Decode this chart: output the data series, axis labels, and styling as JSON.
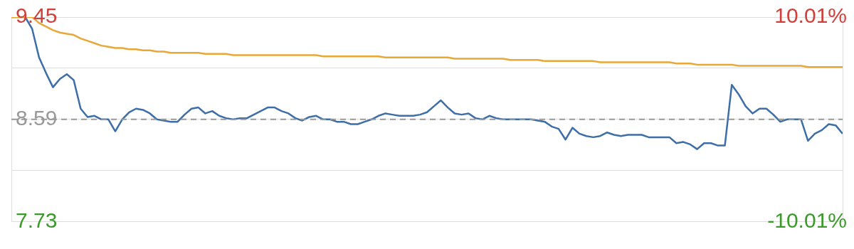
{
  "chart_data": {
    "type": "line",
    "categories": [
      null,
      null,
      null,
      null,
      null,
      null,
      null,
      null,
      null,
      null,
      null,
      null,
      null,
      null,
      null,
      null,
      null,
      null,
      null,
      null,
      null,
      null,
      null,
      null,
      null,
      null,
      null,
      null,
      null,
      null,
      null,
      null,
      null,
      null,
      null,
      null,
      null,
      null,
      null,
      null,
      null,
      null,
      null,
      null,
      null,
      null,
      null,
      null,
      null,
      null,
      null,
      null,
      null,
      null,
      null,
      null,
      null,
      null,
      null,
      null,
      null,
      null,
      null,
      null,
      null,
      null,
      null,
      null,
      null,
      null,
      null,
      null,
      null,
      null,
      null,
      null,
      null,
      null,
      null,
      null,
      null,
      null,
      null,
      null,
      null,
      null,
      null,
      null,
      null,
      null,
      null,
      null,
      null,
      null,
      null,
      null,
      null,
      null,
      null,
      null,
      null,
      null,
      null,
      null,
      null,
      null,
      null,
      null,
      null,
      null,
      null,
      null,
      null,
      null,
      null,
      null,
      null,
      null,
      null,
      null,
      null
    ],
    "ylim": [
      7.73,
      9.45
    ],
    "yticks": [
      7.73,
      {
        "value": 8.16,
        "label": null
      },
      8.59,
      {
        "value": 9.02,
        "label": null
      },
      9.45
    ],
    "y2lim": [
      -10.01,
      10.01
    ],
    "y2ticks": [
      {
        "value": -10.01,
        "label": "-10.01%"
      },
      {
        "value": 10.01,
        "label": "10.01%"
      }
    ],
    "grid": "y",
    "legend": false,
    "marker": "none",
    "ref_lines": [
      {
        "axis": "y",
        "value": 8.59,
        "color": "#999999",
        "line_style": "dashed"
      }
    ],
    "series": [
      {
        "color": "#e8a838",
        "values": [
          9.45,
          9.45,
          9.45,
          9.45,
          9.4,
          9.37,
          9.34,
          9.32,
          9.31,
          9.3,
          9.27,
          9.25,
          9.23,
          9.21,
          9.2,
          9.19,
          9.19,
          9.18,
          9.18,
          9.17,
          9.17,
          9.16,
          9.16,
          9.15,
          9.15,
          9.15,
          9.15,
          9.15,
          9.14,
          9.14,
          9.14,
          9.14,
          9.13,
          9.13,
          9.13,
          9.13,
          9.13,
          9.13,
          9.13,
          9.13,
          9.13,
          9.13,
          9.13,
          9.13,
          9.13,
          9.12,
          9.12,
          9.12,
          9.12,
          9.12,
          9.12,
          9.12,
          9.12,
          9.12,
          9.11,
          9.11,
          9.11,
          9.11,
          9.11,
          9.11,
          9.11,
          9.11,
          9.11,
          9.11,
          9.1,
          9.1,
          9.1,
          9.1,
          9.1,
          9.1,
          9.1,
          9.1,
          9.09,
          9.09,
          9.09,
          9.09,
          9.09,
          9.08,
          9.08,
          9.08,
          9.08,
          9.08,
          9.08,
          9.08,
          9.08,
          9.07,
          9.07,
          9.07,
          9.07,
          9.07,
          9.07,
          9.07,
          9.07,
          9.07,
          9.07,
          9.07,
          9.06,
          9.06,
          9.06,
          9.05,
          9.05,
          9.05,
          9.05,
          9.05,
          9.05,
          9.04,
          9.04,
          9.04,
          9.04,
          9.04,
          9.04,
          9.04,
          9.04,
          9.04,
          9.04,
          9.03,
          9.03,
          9.03,
          9.03,
          9.03,
          9.03
        ]
      },
      {
        "color": "#3d6ea8",
        "values": [
          9.45,
          9.45,
          9.45,
          9.35,
          9.11,
          8.98,
          8.86,
          8.93,
          8.97,
          8.92,
          8.68,
          8.61,
          8.62,
          8.59,
          8.59,
          8.49,
          8.59,
          8.65,
          8.68,
          8.67,
          8.64,
          8.59,
          8.58,
          8.57,
          8.57,
          8.63,
          8.68,
          8.69,
          8.64,
          8.66,
          8.62,
          8.6,
          8.59,
          8.6,
          8.6,
          8.63,
          8.66,
          8.69,
          8.69,
          8.66,
          8.64,
          8.6,
          8.58,
          8.61,
          8.62,
          8.59,
          8.59,
          8.57,
          8.57,
          8.55,
          8.55,
          8.57,
          8.59,
          8.62,
          8.64,
          8.63,
          8.62,
          8.62,
          8.62,
          8.63,
          8.65,
          8.7,
          8.75,
          8.69,
          8.64,
          8.63,
          8.64,
          8.6,
          8.59,
          8.62,
          8.6,
          8.59,
          8.59,
          8.59,
          8.59,
          8.59,
          8.58,
          8.57,
          8.53,
          8.51,
          8.42,
          8.52,
          8.47,
          8.45,
          8.44,
          8.45,
          8.48,
          8.46,
          8.45,
          8.46,
          8.46,
          8.46,
          8.44,
          8.44,
          8.44,
          8.44,
          8.39,
          8.4,
          8.38,
          8.34,
          8.39,
          8.39,
          8.37,
          8.37,
          8.88,
          8.8,
          8.7,
          8.64,
          8.68,
          8.68,
          8.63,
          8.57,
          8.59,
          8.59,
          8.59,
          8.41,
          8.47,
          8.5,
          8.55,
          8.54,
          8.47
        ]
      }
    ]
  }
}
